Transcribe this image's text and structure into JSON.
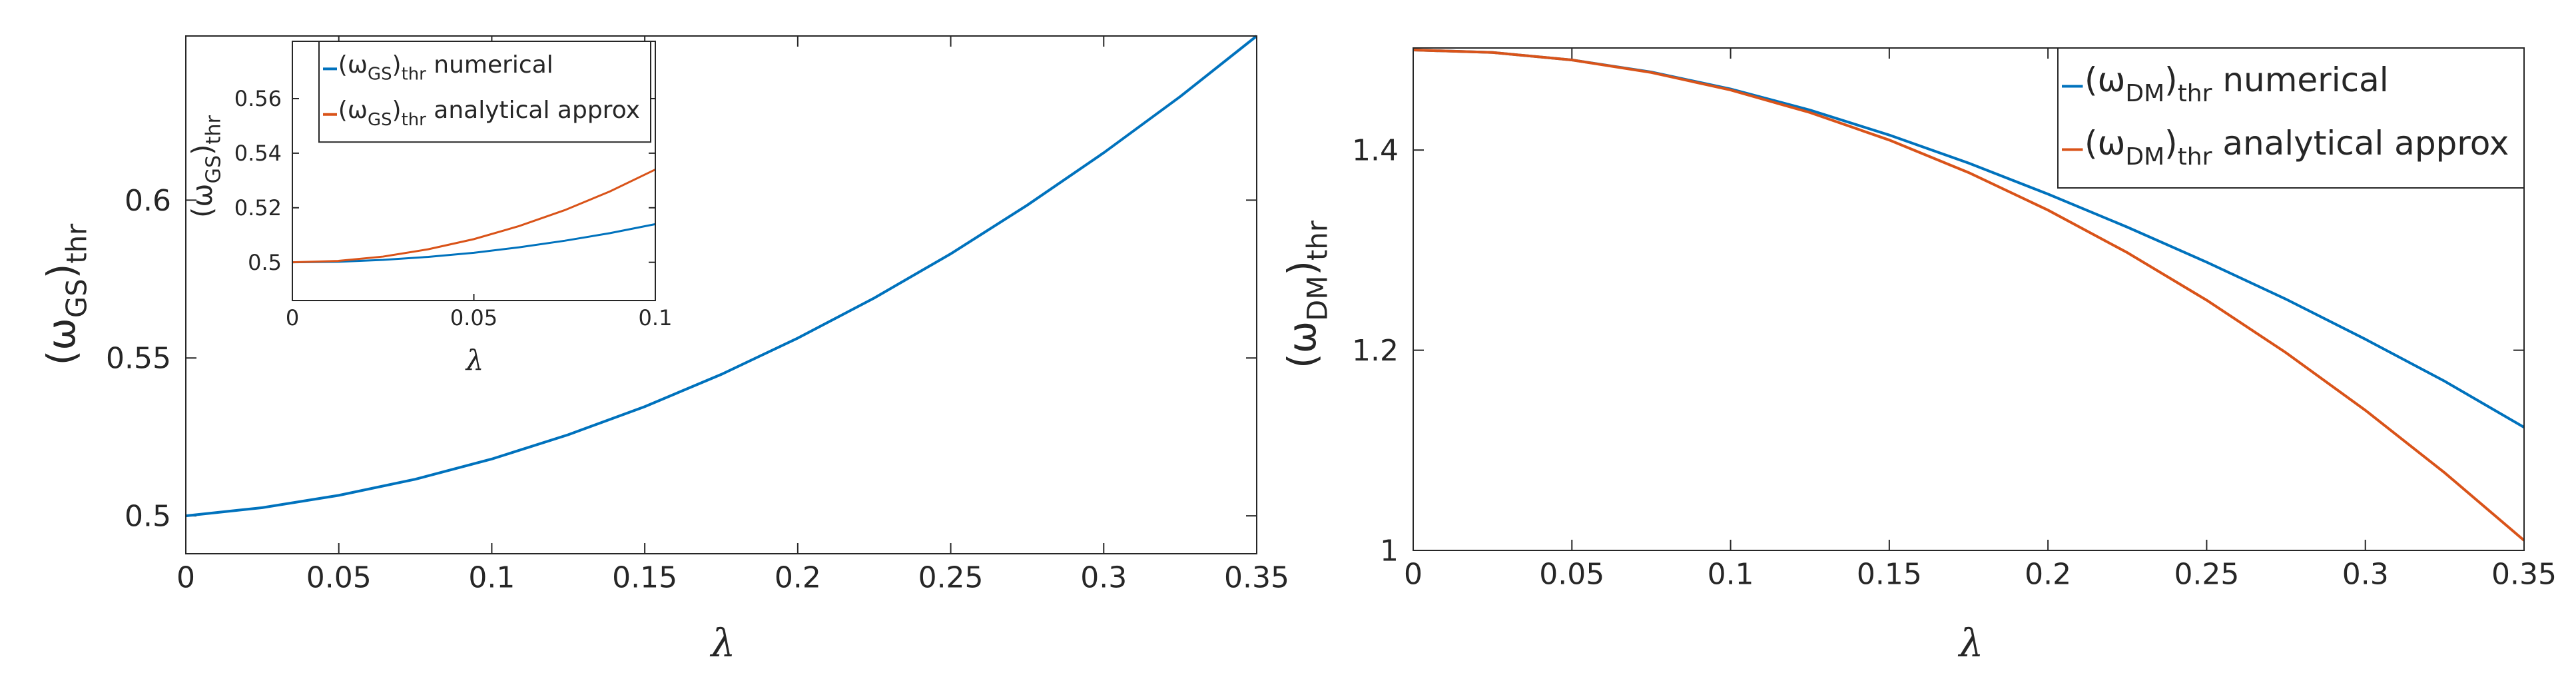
{
  "chart_data": [
    {
      "type": "line",
      "ylabel": [
        "(ω",
        "GS",
        ")",
        "thr"
      ],
      "xlabel": "λ",
      "x": [
        0,
        0.025,
        0.05,
        0.075,
        0.1,
        0.125,
        0.15,
        0.175,
        0.2,
        0.225,
        0.25,
        0.275,
        0.3,
        0.325,
        0.35
      ],
      "series": [
        {
          "name": [
            "(ω",
            "GS",
            ")",
            "thr",
            " numerical"
          ],
          "color": "#0072bd",
          "values": [
            0.5,
            0.5026,
            0.5065,
            0.5116,
            0.518,
            0.5257,
            0.5346,
            0.5448,
            0.5563,
            0.569,
            0.583,
            0.5984,
            0.615,
            0.6328,
            0.652
          ]
        }
      ],
      "xlim": [
        0,
        0.35
      ],
      "xticks": [
        0,
        0.05,
        0.1,
        0.15,
        0.2,
        0.25,
        0.3,
        0.35
      ],
      "ylim": [
        0.488,
        0.652
      ],
      "yticks": [
        0.5,
        0.55,
        0.6
      ]
    },
    {
      "type": "line",
      "ylabel": [
        "(ω",
        "GS",
        ")",
        "thr"
      ],
      "xlabel": "λ",
      "x": [
        0,
        0.0125,
        0.025,
        0.0375,
        0.05,
        0.0625,
        0.075,
        0.0875,
        0.1
      ],
      "series": [
        {
          "name": [
            "(ω",
            "GS",
            ")",
            "thr",
            " numerical"
          ],
          "color": "#0072bd",
          "values": [
            0.5,
            0.5002,
            0.5009,
            0.502,
            0.5035,
            0.5055,
            0.5079,
            0.5107,
            0.514
          ]
        },
        {
          "name": [
            "(ω",
            "GS",
            ")",
            "thr",
            " analytical approx"
          ],
          "color": "#d95319",
          "values": [
            0.5,
            0.5005,
            0.5021,
            0.5048,
            0.5085,
            0.5133,
            0.5191,
            0.526,
            0.534
          ]
        }
      ],
      "xlim": [
        0,
        0.1
      ],
      "xticks": [
        0,
        0.05,
        0.1
      ],
      "ylim": [
        0.486,
        0.581
      ],
      "yticks": [
        0.5,
        0.52,
        0.54,
        0.56
      ],
      "legend": "upper left"
    },
    {
      "type": "line",
      "ylabel": [
        "(ω",
        "DM",
        ")",
        "thr"
      ],
      "xlabel": "λ",
      "x": [
        0,
        0.025,
        0.05,
        0.075,
        0.1,
        0.125,
        0.15,
        0.175,
        0.2,
        0.225,
        0.25,
        0.275,
        0.3,
        0.325,
        0.35
      ],
      "series": [
        {
          "name": [
            "(ω",
            "DM",
            ")",
            "thr",
            " numerical"
          ],
          "color": "#0072bd",
          "values": [
            1.5,
            1.4975,
            1.49,
            1.478,
            1.461,
            1.44,
            1.415,
            1.387,
            1.356,
            1.323,
            1.288,
            1.251,
            1.211,
            1.169,
            1.123
          ]
        },
        {
          "name": [
            "(ω",
            "DM",
            ")",
            "thr",
            " analytical approx"
          ],
          "color": "#d95319",
          "values": [
            1.5,
            1.4975,
            1.49,
            1.4775,
            1.46,
            1.4375,
            1.41,
            1.3775,
            1.34,
            1.2975,
            1.25,
            1.1975,
            1.14,
            1.0775,
            1.01
          ]
        }
      ],
      "xlim": [
        0,
        0.35
      ],
      "xticks": [
        0,
        0.05,
        0.1,
        0.15,
        0.2,
        0.25,
        0.3,
        0.35
      ],
      "ylim": [
        1,
        1.502
      ],
      "yticks": [
        1,
        1.2,
        1.4
      ],
      "legend": "upper right"
    }
  ]
}
